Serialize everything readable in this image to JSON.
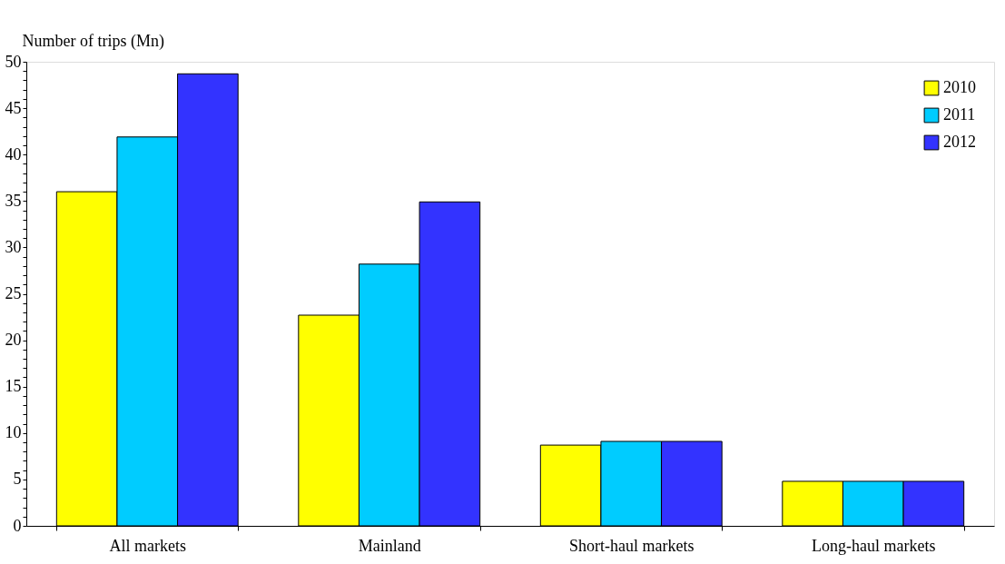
{
  "chart_data": {
    "type": "bar",
    "ylabel": "Number of trips (Mn)",
    "categories": [
      "All markets",
      "Mainland",
      "Short-haul markets",
      "Long-haul markets"
    ],
    "series": [
      {
        "name": "2010",
        "color": "#ffff00",
        "values": [
          36.0,
          22.7,
          8.7,
          4.8
        ]
      },
      {
        "name": "2011",
        "color": "#00ccff",
        "values": [
          41.9,
          28.2,
          9.1,
          4.8
        ]
      },
      {
        "name": "2012",
        "color": "#3333ff",
        "values": [
          48.7,
          34.9,
          9.1,
          4.8
        ]
      }
    ],
    "ylim": [
      0,
      50
    ],
    "yticks": [
      0,
      {
        "value": 1,
        "label": null
      },
      {
        "value": 2,
        "label": null
      },
      {
        "value": 3,
        "label": null
      },
      {
        "value": 4,
        "label": null
      },
      5,
      {
        "value": 6,
        "label": null
      },
      {
        "value": 7,
        "label": null
      },
      {
        "value": 8,
        "label": null
      },
      {
        "value": 9,
        "label": null
      },
      10,
      {
        "value": 11,
        "label": null
      },
      {
        "value": 12,
        "label": null
      },
      {
        "value": 13,
        "label": null
      },
      {
        "value": 14,
        "label": null
      },
      15,
      {
        "value": 16,
        "label": null
      },
      {
        "value": 17,
        "label": null
      },
      {
        "value": 18,
        "label": null
      },
      {
        "value": 19,
        "label": null
      },
      20,
      {
        "value": 21,
        "label": null
      },
      {
        "value": 22,
        "label": null
      },
      {
        "value": 23,
        "label": null
      },
      {
        "value": 24,
        "label": null
      },
      25,
      {
        "value": 26,
        "label": null
      },
      {
        "value": 27,
        "label": null
      },
      {
        "value": 28,
        "label": null
      },
      {
        "value": 29,
        "label": null
      },
      30,
      {
        "value": 31,
        "label": null
      },
      {
        "value": 32,
        "label": null
      },
      {
        "value": 33,
        "label": null
      },
      {
        "value": 34,
        "label": null
      },
      35,
      {
        "value": 36,
        "label": null
      },
      {
        "value": 37,
        "label": null
      },
      {
        "value": 38,
        "label": null
      },
      {
        "value": 39,
        "label": null
      },
      40,
      {
        "value": 41,
        "label": null
      },
      {
        "value": 42,
        "label": null
      },
      {
        "value": 43,
        "label": null
      },
      {
        "value": 44,
        "label": null
      },
      45,
      {
        "value": 46,
        "label": null
      },
      {
        "value": 47,
        "label": null
      },
      {
        "value": 48,
        "label": null
      },
      {
        "value": 49,
        "label": null
      },
      50
    ],
    "grid": false,
    "legend": "top right"
  }
}
